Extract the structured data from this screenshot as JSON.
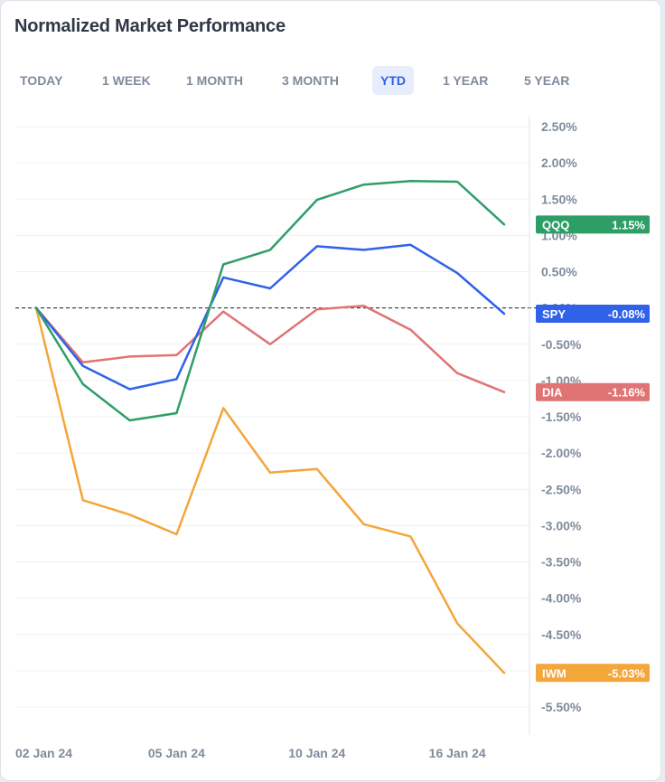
{
  "header": {
    "title": "Normalized Market Performance"
  },
  "tabs": [
    {
      "label": "TODAY",
      "active": false
    },
    {
      "label": "1 WEEK",
      "active": false
    },
    {
      "label": "1 MONTH",
      "active": false
    },
    {
      "label": "3 MONTH",
      "active": false
    },
    {
      "label": "YTD",
      "active": true
    },
    {
      "label": "1 YEAR",
      "active": false
    },
    {
      "label": "5 YEAR",
      "active": false
    }
  ],
  "chart_data": {
    "type": "line",
    "x": [
      "2024-01-02",
      "2024-01-03",
      "2024-01-04",
      "2024-01-05",
      "2024-01-08",
      "2024-01-09",
      "2024-01-10",
      "2024-01-11",
      "2024-01-12",
      "2024-01-16",
      "2024-01-17"
    ],
    "x_tick_labels": [
      "02 Jan 24",
      "05 Jan 24",
      "10 Jan 24",
      "16 Jan 24"
    ],
    "x_tick_indices": [
      0,
      3,
      6,
      9
    ],
    "y_unit": "%",
    "ylim": [
      -5.5,
      2.5
    ],
    "y_ticks": [
      2.5,
      2.0,
      1.5,
      1.0,
      0.5,
      0.0,
      -0.5,
      -1.0,
      -1.5,
      -2.0,
      -2.5,
      -3.0,
      -3.5,
      -4.0,
      -4.5,
      -5.5
    ],
    "y_tick_labels": [
      "2.50%",
      "2.00%",
      "1.50%",
      "1.00%",
      "0.50%",
      "0.00%",
      "-0.50%",
      "-1.00%",
      "-1.50%",
      "-2.00%",
      "-2.50%",
      "-3.00%",
      "-3.50%",
      "-4.00%",
      "-4.50%",
      "-5.50%"
    ],
    "grid": true,
    "zero_line": "dashed",
    "series": [
      {
        "name": "QQQ",
        "color": "#2e9e67",
        "end_label": "1.15%",
        "values": [
          0.0,
          -1.05,
          -1.55,
          -1.45,
          0.6,
          0.8,
          1.49,
          1.7,
          1.75,
          1.74,
          1.15
        ]
      },
      {
        "name": "SPY",
        "color": "#2f62e9",
        "end_label": "-0.08%",
        "values": [
          0.0,
          -0.8,
          -1.12,
          -0.98,
          0.42,
          0.27,
          0.85,
          0.8,
          0.87,
          0.48,
          -0.08
        ]
      },
      {
        "name": "DIA",
        "color": "#e07474",
        "end_label": "-1.16%",
        "values": [
          0.0,
          -0.75,
          -0.67,
          -0.65,
          -0.05,
          -0.5,
          -0.02,
          0.03,
          -0.3,
          -0.9,
          -1.16
        ]
      },
      {
        "name": "IWM",
        "color": "#f3a63a",
        "end_label": "-5.03%",
        "values": [
          0.0,
          -2.65,
          -2.85,
          -3.12,
          -1.38,
          -2.27,
          -2.22,
          -2.98,
          -3.15,
          -4.35,
          -5.03
        ]
      }
    ]
  }
}
